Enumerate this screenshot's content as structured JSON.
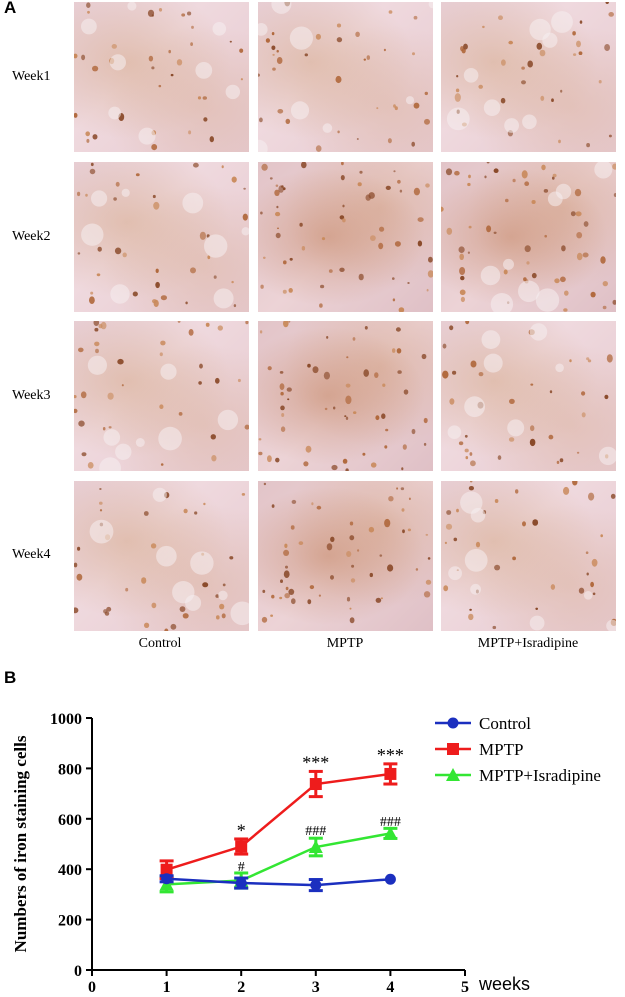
{
  "figure": {
    "panel_a_label": "A",
    "panel_b_label": "B",
    "rows": [
      "Week1",
      "Week2",
      "Week3",
      "Week4"
    ],
    "columns": [
      "Control",
      "MPTP",
      "MPTP+Isradipine"
    ]
  },
  "colors": {
    "control": "#1b2fbf",
    "mptp": "#ee1c1c",
    "isradipine": "#33e633"
  },
  "chart_data": {
    "type": "line",
    "title": "",
    "xlabel": "weeks",
    "ylabel": "Numbers of iron staining cells",
    "xlim": [
      0,
      5
    ],
    "ylim": [
      0,
      1000
    ],
    "xticks": [
      0,
      1,
      2,
      3,
      4,
      5
    ],
    "yticks": [
      0,
      200,
      400,
      600,
      800,
      1000
    ],
    "legend_position": "top-right",
    "series": [
      {
        "name": "Control",
        "marker": "circle",
        "x": [
          1,
          2,
          3,
          4
        ],
        "y": [
          362,
          345,
          337,
          360
        ],
        "err": [
          12,
          20,
          22,
          0
        ]
      },
      {
        "name": "MPTP",
        "marker": "square",
        "x": [
          1,
          2,
          3,
          4
        ],
        "y": [
          398,
          490,
          738,
          778
        ],
        "err": [
          35,
          30,
          50,
          40
        ]
      },
      {
        "name": "MPTP+Isradipine",
        "marker": "triangle",
        "x": [
          1,
          2,
          3,
          4
        ],
        "y": [
          340,
          355,
          488,
          542
        ],
        "err": [
          30,
          30,
          35,
          20
        ]
      }
    ],
    "annotations": [
      {
        "x": 2,
        "y": 530,
        "text": "*",
        "color": "#000000"
      },
      {
        "x": 3,
        "y": 800,
        "text": "***",
        "color": "#000000"
      },
      {
        "x": 4,
        "y": 830,
        "text": "***",
        "color": "#000000"
      },
      {
        "x": 2,
        "y": 392,
        "text": "#",
        "color": "#000000"
      },
      {
        "x": 3,
        "y": 535,
        "text": "###",
        "color": "#000000"
      },
      {
        "x": 4,
        "y": 572,
        "text": "###",
        "color": "#000000"
      }
    ]
  }
}
